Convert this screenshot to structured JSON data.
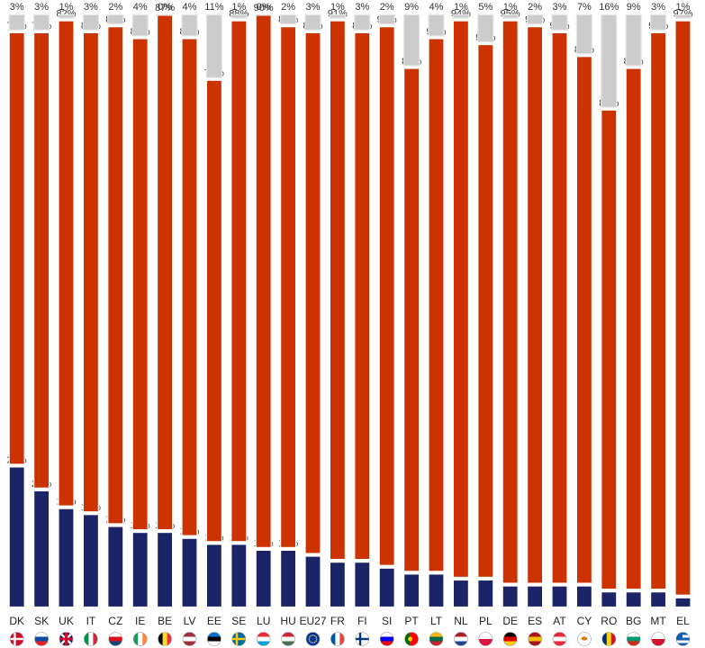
{
  "chart_data": {
    "type": "bar",
    "stacked": true,
    "orientation": "vertical",
    "categories": [
      "DK",
      "SK",
      "UK",
      "IT",
      "CZ",
      "IE",
      "BE",
      "LV",
      "EE",
      "SE",
      "LU",
      "HU",
      "EU27",
      "FR",
      "FI",
      "SI",
      "PT",
      "LT",
      "NL",
      "PL",
      "DE",
      "ES",
      "AT",
      "CY",
      "RO",
      "BG",
      "MT",
      "EL"
    ],
    "series": [
      {
        "values": [
          24,
          20,
          17,
          16,
          14,
          13,
          13,
          12,
          11,
          11,
          10,
          10,
          9,
          8,
          8,
          7,
          6,
          6,
          5,
          5,
          4,
          4,
          4,
          4,
          3,
          3,
          3,
          2
        ],
        "color": "#1a2466"
      },
      {
        "values": [
          73,
          77,
          82,
          81,
          84,
          83,
          87,
          84,
          78,
          88,
          90,
          88,
          88,
          91,
          89,
          91,
          85,
          90,
          94,
          90,
          95,
          94,
          93,
          89,
          81,
          88,
          94,
          97
        ],
        "color": "#cc3300"
      },
      {
        "values": [
          3,
          3,
          1,
          3,
          2,
          4,
          0,
          4,
          11,
          1,
          0,
          2,
          3,
          1,
          3,
          2,
          9,
          4,
          1,
          5,
          1,
          2,
          3,
          7,
          16,
          9,
          3,
          1
        ],
        "color": "#cccccc"
      }
    ],
    "value_suffix": "%",
    "ylim": [
      0,
      100
    ],
    "grid": false,
    "legend": "none",
    "flags": [
      "denmark-flag",
      "slovakia-flag",
      "uk-flag",
      "italy-flag",
      "czech-flag",
      "ireland-flag",
      "belgium-flag",
      "latvia-flag",
      "estonia-flag",
      "sweden-flag",
      "luxembourg-flag",
      "hungary-flag",
      "eu-flag",
      "france-flag",
      "finland-flag",
      "slovenia-flag",
      "portugal-flag",
      "lithuania-flag",
      "netherlands-flag",
      "poland-flag",
      "germany-flag",
      "spain-flag",
      "austria-flag",
      "cyprus-flag",
      "romania-flag",
      "bulgaria-flag",
      "malta-flag",
      "greece-flag"
    ]
  }
}
